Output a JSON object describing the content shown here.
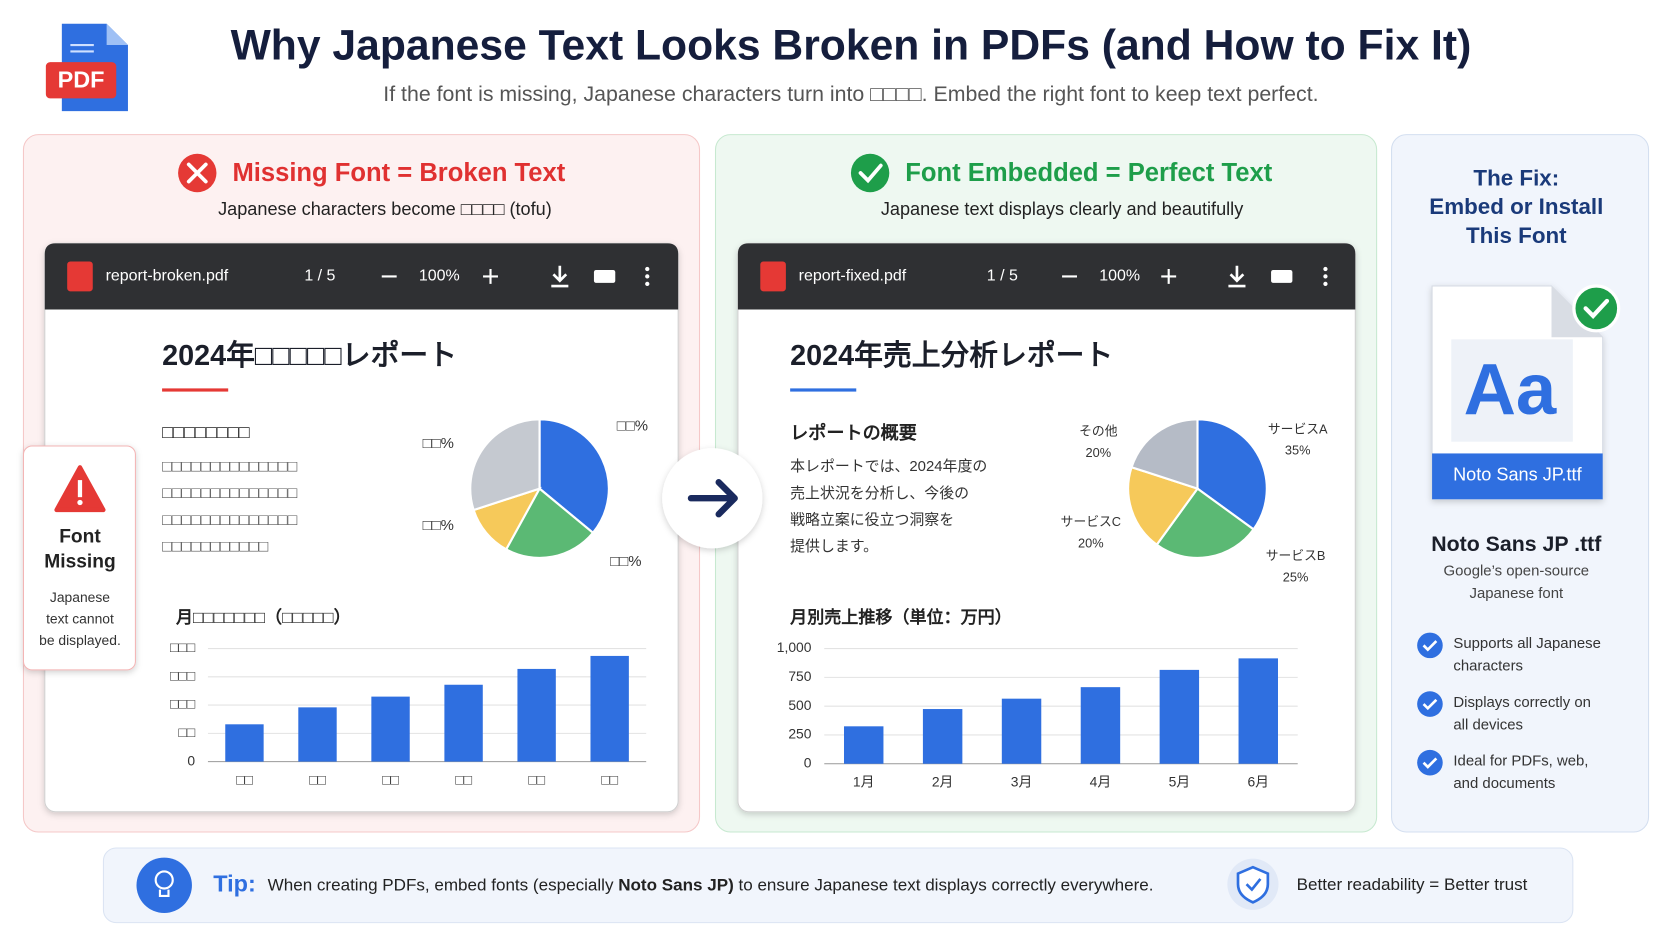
{
  "header": {
    "title": "Why Japanese Text Looks Broken in PDFs (and How to Fix It)",
    "subtitle": "If the font is missing, Japanese characters turn into □□□□. Embed the right font to keep text perfect.",
    "icon_label": "PDF"
  },
  "broken_panel": {
    "heading": "Missing Font = Broken Text",
    "subheading": "Japanese characters become □□□□ (tofu)",
    "viewer": {
      "filename": "report-broken.pdf",
      "page": "1 / 5",
      "zoom": "100%"
    },
    "document": {
      "title": "2024年□□□□□レポート",
      "section_heading": "□□□□□□□□",
      "lines": [
        "□□□□□□□□□□□□□□",
        "□□□□□□□□□□□□□□",
        "□□□□□□□□□□□□□□",
        "□□□□□□□□□□□"
      ]
    },
    "callout": {
      "title_lines": [
        "Font",
        "Missing"
      ],
      "text_lines": [
        "Japanese",
        "text cannot",
        "be displayed."
      ]
    }
  },
  "fixed_panel": {
    "heading": "Font Embedded = Perfect Text",
    "subheading": "Japanese text displays clearly and beautifully",
    "viewer": {
      "filename": "report-fixed.pdf",
      "page": "1 / 5",
      "zoom": "100%"
    },
    "document": {
      "title": "2024年売上分析レポート",
      "section_heading": "レポートの概要",
      "lines": [
        "本レポートでは、2024年度の",
        "売上状況を分析し、今後の",
        "戦略立案に役立つ洞察を",
        "提供します。"
      ]
    }
  },
  "fix_panel": {
    "heading_lines": [
      "The Fix:",
      "Embed or Install",
      "This Font"
    ],
    "file_glyph": "Aa",
    "file_name": "Noto Sans JP.ttf",
    "font_name": "Noto Sans JP .ttf",
    "description_lines": [
      "Google’s open-source",
      "Japanese font"
    ],
    "features": [
      [
        "Supports all Japanese",
        "characters"
      ],
      [
        "Displays correctly on",
        "all devices"
      ],
      [
        "Ideal for PDFs, web,",
        "and documents"
      ]
    ]
  },
  "tip": {
    "label": "Tip:",
    "text_before": "When creating PDFs, embed fonts (especially ",
    "emphasis": "Noto Sans JP)",
    "text_after": " to ensure Japanese text displays correctly everywhere.",
    "badge": "Better readability = Better trust"
  },
  "chart_data": [
    {
      "type": "pie",
      "values": [
        36,
        22,
        12,
        30
      ],
      "value_labels": [
        "□□%",
        "□□%",
        "□□%",
        "□□%"
      ],
      "colors": [
        "#2f6fe0",
        "#5bb974",
        "#f6c95a",
        "#c5c9d0"
      ]
    },
    {
      "type": "bar",
      "title": "月□□□□□□□（□□□□□）",
      "categories": [
        "□□",
        "□□",
        "□□",
        "□□",
        "□□",
        "□□"
      ],
      "values": [
        330,
        480,
        575,
        680,
        820,
        935
      ],
      "color": "#2f6fe0",
      "ylim": [
        0,
        1000
      ],
      "yticks": [
        0,
        {
          "value": 250,
          "label": "□□"
        },
        {
          "value": 500,
          "label": "□□□"
        },
        {
          "value": 750,
          "label": "□□□"
        },
        {
          "value": 1000,
          "label": "□□□"
        }
      ],
      "grid": true
    },
    {
      "type": "pie",
      "categories": [
        "サービスA",
        "サービスB",
        "サービスC",
        "その他"
      ],
      "values": [
        35,
        25,
        20,
        20
      ],
      "value_labels": [
        "35%",
        "25%",
        "20%",
        "20%"
      ],
      "colors": [
        "#2f6fe0",
        "#5bb974",
        "#f6c95a",
        "#b5bbc6"
      ]
    },
    {
      "type": "bar",
      "title": "月別売上推移（単位：万円）",
      "categories": [
        "1月",
        "2月",
        "3月",
        "4月",
        "5月",
        "6月"
      ],
      "values": [
        325,
        475,
        565,
        665,
        815,
        915
      ],
      "color": "#2f6fe0",
      "ylim": [
        0,
        1000
      ],
      "yticks": [
        0,
        250,
        500,
        750,
        {
          "value": 1000,
          "label": "1,000"
        }
      ],
      "grid": true
    }
  ]
}
